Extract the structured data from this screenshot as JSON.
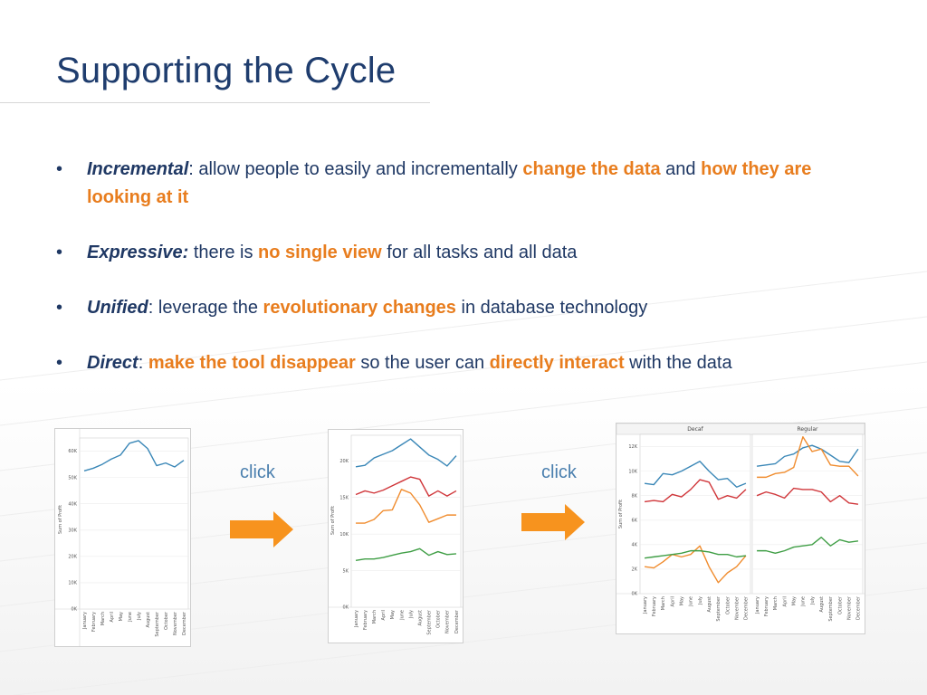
{
  "slide": {
    "title": "Supporting the Cycle",
    "bullets": [
      {
        "term": "Incremental",
        "parts": [
          {
            "t": ":  allow people to easily and incrementally ",
            "hl": false
          },
          {
            "t": "change the data",
            "hl": true
          },
          {
            "t": " and ",
            "hl": false
          },
          {
            "t": "how they are looking at it",
            "hl": true
          }
        ]
      },
      {
        "term": "Expressive:",
        "parts": [
          {
            "t": "  there is ",
            "hl": false
          },
          {
            "t": "no single view",
            "hl": true
          },
          {
            "t": " for all tasks and all data",
            "hl": false
          }
        ]
      },
      {
        "term": "Unified",
        "parts": [
          {
            "t": ":  leverage the ",
            "hl": false
          },
          {
            "t": "revolutionary changes",
            "hl": true
          },
          {
            "t": " in database technology",
            "hl": false
          }
        ]
      },
      {
        "term": "Direct",
        "parts": [
          {
            "t": ":  ",
            "hl": false
          },
          {
            "t": "make the tool disappear",
            "hl": true
          },
          {
            "t": " so the user can ",
            "hl": false
          },
          {
            "t": "directly interact",
            "hl": true
          },
          {
            "t": " with the data",
            "hl": false
          }
        ]
      }
    ],
    "click_label_1": "click",
    "click_label_2": "click",
    "colors": {
      "title": "#1f3d6e",
      "highlight": "#e87d1e",
      "arrow": "#f7931e",
      "click": "#4a7fae",
      "series_blue": "#3a87b7",
      "series_red": "#d0363a",
      "series_orange": "#f08c2e",
      "series_green": "#3f9e45"
    }
  },
  "chart_data": [
    {
      "type": "line",
      "ylabel": "Sum of Profit",
      "categories": [
        "January",
        "February",
        "March",
        "April",
        "May",
        "June",
        "July",
        "August",
        "September",
        "October",
        "November",
        "December"
      ],
      "yticks": [
        "0K",
        "10K",
        "20K",
        "30K",
        "40K",
        "50K",
        "60K"
      ],
      "ylim": [
        0,
        65000
      ],
      "series": [
        {
          "color": "#3a87b7",
          "values": [
            52500,
            53500,
            55000,
            57000,
            58500,
            63000,
            64000,
            61000,
            54500,
            55500,
            54000,
            56500
          ]
        }
      ]
    },
    {
      "type": "line",
      "ylabel": "Sum of Profit",
      "categories": [
        "January",
        "February",
        "March",
        "April",
        "May",
        "June",
        "July",
        "August",
        "September",
        "October",
        "November",
        "December"
      ],
      "yticks": [
        "0K",
        "5K",
        "10K",
        "15K",
        "20K"
      ],
      "ylim": [
        0,
        23500
      ],
      "series": [
        {
          "color": "#3a87b7",
          "values": [
            19200,
            19400,
            20400,
            20900,
            21400,
            22200,
            23000,
            21900,
            20800,
            20200,
            19300,
            20700
          ]
        },
        {
          "color": "#d0363a",
          "values": [
            15400,
            15900,
            15600,
            16000,
            16600,
            17200,
            17800,
            17500,
            15200,
            15900,
            15200,
            15900
          ]
        },
        {
          "color": "#f08c2e",
          "values": [
            11500,
            11500,
            12000,
            13200,
            13300,
            16100,
            15600,
            14000,
            11600,
            12100,
            12600,
            12600
          ]
        },
        {
          "color": "#3f9e45",
          "values": [
            6400,
            6600,
            6600,
            6800,
            7100,
            7400,
            7600,
            8000,
            7100,
            7600,
            7200,
            7300
          ]
        }
      ]
    },
    {
      "type": "line",
      "ylabel": "Sum of Profit",
      "facets": [
        "Decaf",
        "Regular"
      ],
      "categories": [
        "January",
        "February",
        "March",
        "April",
        "May",
        "June",
        "July",
        "August",
        "September",
        "October",
        "November",
        "December"
      ],
      "yticks": [
        "0K",
        "2K",
        "4K",
        "6K",
        "8K",
        "10K",
        "12K"
      ],
      "ylim": [
        0,
        13000
      ],
      "panels": [
        {
          "facet": "Decaf",
          "series": [
            {
              "color": "#3a87b7",
              "values": [
                9000,
                8900,
                9800,
                9700,
                10000,
                10400,
                10800,
                10000,
                9300,
                9400,
                8700,
                9000
              ]
            },
            {
              "color": "#d0363a",
              "values": [
                7500,
                7600,
                7500,
                8100,
                7900,
                8500,
                9300,
                9100,
                7700,
                8000,
                7800,
                8500
              ]
            },
            {
              "color": "#f08c2e",
              "values": [
                2200,
                2100,
                2600,
                3200,
                3000,
                3200,
                3900,
                2200,
                900,
                1700,
                2200,
                3100
              ]
            },
            {
              "color": "#3f9e45",
              "values": [
                2900,
                3000,
                3100,
                3200,
                3300,
                3500,
                3500,
                3400,
                3200,
                3200,
                3000,
                3100
              ]
            }
          ]
        },
        {
          "facet": "Regular",
          "series": [
            {
              "color": "#3a87b7",
              "values": [
                10400,
                10500,
                10600,
                11200,
                11400,
                11900,
                12100,
                11800,
                11300,
                10800,
                10700,
                11800
              ]
            },
            {
              "color": "#f08c2e",
              "values": [
                9500,
                9500,
                9800,
                9900,
                10300,
                12800,
                11600,
                11800,
                10500,
                10400,
                10400,
                9600
              ]
            },
            {
              "color": "#d0363a",
              "values": [
                8000,
                8300,
                8100,
                7800,
                8600,
                8500,
                8500,
                8300,
                7500,
                8000,
                7400,
                7300
              ]
            },
            {
              "color": "#3f9e45",
              "values": [
                3500,
                3500,
                3300,
                3500,
                3800,
                3900,
                4000,
                4600,
                3900,
                4400,
                4200,
                4300
              ]
            }
          ]
        }
      ]
    }
  ]
}
